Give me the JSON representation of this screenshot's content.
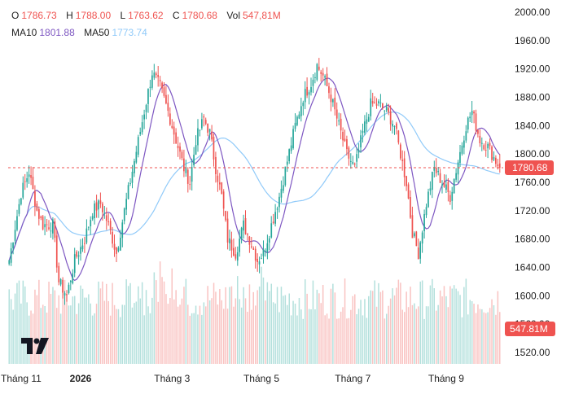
{
  "legend": {
    "o_label": "O",
    "o_value": "1786.73",
    "h_label": "H",
    "h_value": "1788.00",
    "l_label": "L",
    "l_value": "1763.62",
    "c_label": "C",
    "c_value": "1780.68",
    "vol_label": "Vol",
    "vol_value": "547,81M",
    "ma10_label": "MA10",
    "ma10_value": "1801.88",
    "ma50_label": "MA50",
    "ma50_value": "1773.74"
  },
  "price_tag": "1780.68",
  "volume_tag": "547.81M",
  "colors": {
    "up": "#26a69a",
    "down": "#ef5350",
    "ma10": "#7e57c2",
    "ma50": "#90caf9",
    "last_price": "#ef5350"
  },
  "logo_icon": "tradingview-logo-icon",
  "chart_data": {
    "type": "candlestick",
    "ylim": [
      1520,
      2000
    ],
    "y_ticks": [
      1520,
      1560,
      1600,
      1640,
      1680,
      1720,
      1760,
      1800,
      1840,
      1880,
      1920,
      1960,
      2000
    ],
    "x_ticks": [
      {
        "label": "Tháng 11",
        "index": 6,
        "bold": false
      },
      {
        "label": "2026",
        "index": 36,
        "bold": true
      },
      {
        "label": "Tháng 3",
        "index": 82,
        "bold": false
      },
      {
        "label": "Tháng 5",
        "index": 127,
        "bold": false
      },
      {
        "label": "Tháng 7",
        "index": 173,
        "bold": false
      },
      {
        "label": "Tháng 9",
        "index": 220,
        "bold": false
      }
    ],
    "last_close": 1780.68,
    "last_volume": "547.81M",
    "anchors": [
      [
        0,
        1650
      ],
      [
        6,
        1745
      ],
      [
        10,
        1775
      ],
      [
        14,
        1720
      ],
      [
        17,
        1700
      ],
      [
        22,
        1700
      ],
      [
        25,
        1620
      ],
      [
        29,
        1600
      ],
      [
        33,
        1650
      ],
      [
        38,
        1680
      ],
      [
        42,
        1720
      ],
      [
        46,
        1730
      ],
      [
        50,
        1700
      ],
      [
        54,
        1660
      ],
      [
        58,
        1720
      ],
      [
        63,
        1790
      ],
      [
        68,
        1860
      ],
      [
        72,
        1915
      ],
      [
        76,
        1895
      ],
      [
        80,
        1860
      ],
      [
        84,
        1820
      ],
      [
        88,
        1780
      ],
      [
        91,
        1760
      ],
      [
        94,
        1820
      ],
      [
        98,
        1850
      ],
      [
        101,
        1830
      ],
      [
        104,
        1780
      ],
      [
        107,
        1740
      ],
      [
        110,
        1680
      ],
      [
        114,
        1660
      ],
      [
        118,
        1700
      ],
      [
        121,
        1680
      ],
      [
        125,
        1650
      ],
      [
        128,
        1660
      ],
      [
        132,
        1700
      ],
      [
        136,
        1740
      ],
      [
        140,
        1790
      ],
      [
        144,
        1840
      ],
      [
        148,
        1880
      ],
      [
        152,
        1900
      ],
      [
        155,
        1925
      ],
      [
        158,
        1910
      ],
      [
        162,
        1880
      ],
      [
        166,
        1840
      ],
      [
        170,
        1800
      ],
      [
        174,
        1780
      ],
      [
        178,
        1830
      ],
      [
        182,
        1870
      ],
      [
        186,
        1870
      ],
      [
        190,
        1860
      ],
      [
        194,
        1840
      ],
      [
        197,
        1800
      ],
      [
        200,
        1760
      ],
      [
        203,
        1690
      ],
      [
        206,
        1660
      ],
      [
        210,
        1730
      ],
      [
        214,
        1780
      ],
      [
        218,
        1760
      ],
      [
        222,
        1740
      ],
      [
        226,
        1790
      ],
      [
        230,
        1840
      ],
      [
        233,
        1860
      ],
      [
        237,
        1820
      ],
      [
        241,
        1810
      ],
      [
        245,
        1790
      ],
      [
        247,
        1781
      ]
    ],
    "volume_range": [
      380,
      650
    ]
  }
}
